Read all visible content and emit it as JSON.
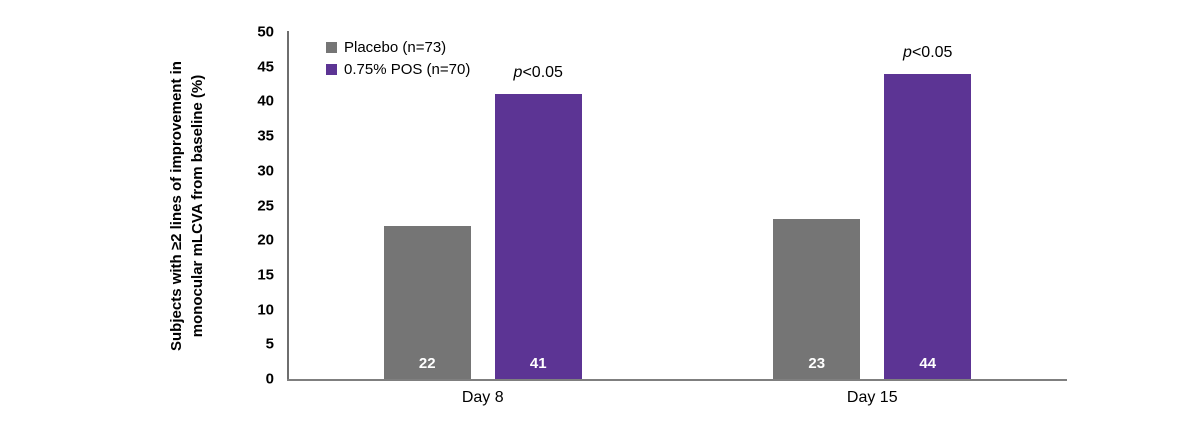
{
  "chart_data": {
    "type": "bar",
    "categories": [
      "Day 8",
      "Day 15"
    ],
    "series": [
      {
        "name": "Placebo (n=73)",
        "color": "#757575",
        "values": [
          22,
          23
        ]
      },
      {
        "name": "0.75% POS (n=70)",
        "color": "#5C3494",
        "values": [
          41,
          44
        ]
      }
    ],
    "annotations": [
      {
        "italic": "p",
        "rest": "<0.05",
        "category": "Day 8",
        "series": "0.75% POS (n=70)"
      },
      {
        "italic": "p",
        "rest": "<0.05",
        "category": "Day 15",
        "series": "0.75% POS (n=70)"
      }
    ],
    "bar_value_labels": [
      [
        "22",
        "41"
      ],
      [
        "23",
        "44"
      ]
    ],
    "title": "",
    "xlabel": "",
    "ylabel": "Subjects with ≥2 lines of improvement in monocular mLCVA from baseline (%)",
    "ylabel_lines": [
      "Subjects with ≥2 lines of improvement in",
      "monocular mLCVA from baseline (%)"
    ],
    "ylim": [
      0,
      50
    ],
    "ytick_step": 5,
    "yticks": [
      0,
      5,
      10,
      15,
      20,
      25,
      30,
      35,
      40,
      45,
      50
    ],
    "grid": false,
    "legend_position": "top-left",
    "value_label_color": "#ffffff",
    "axis_color": "#6e6e6e"
  }
}
